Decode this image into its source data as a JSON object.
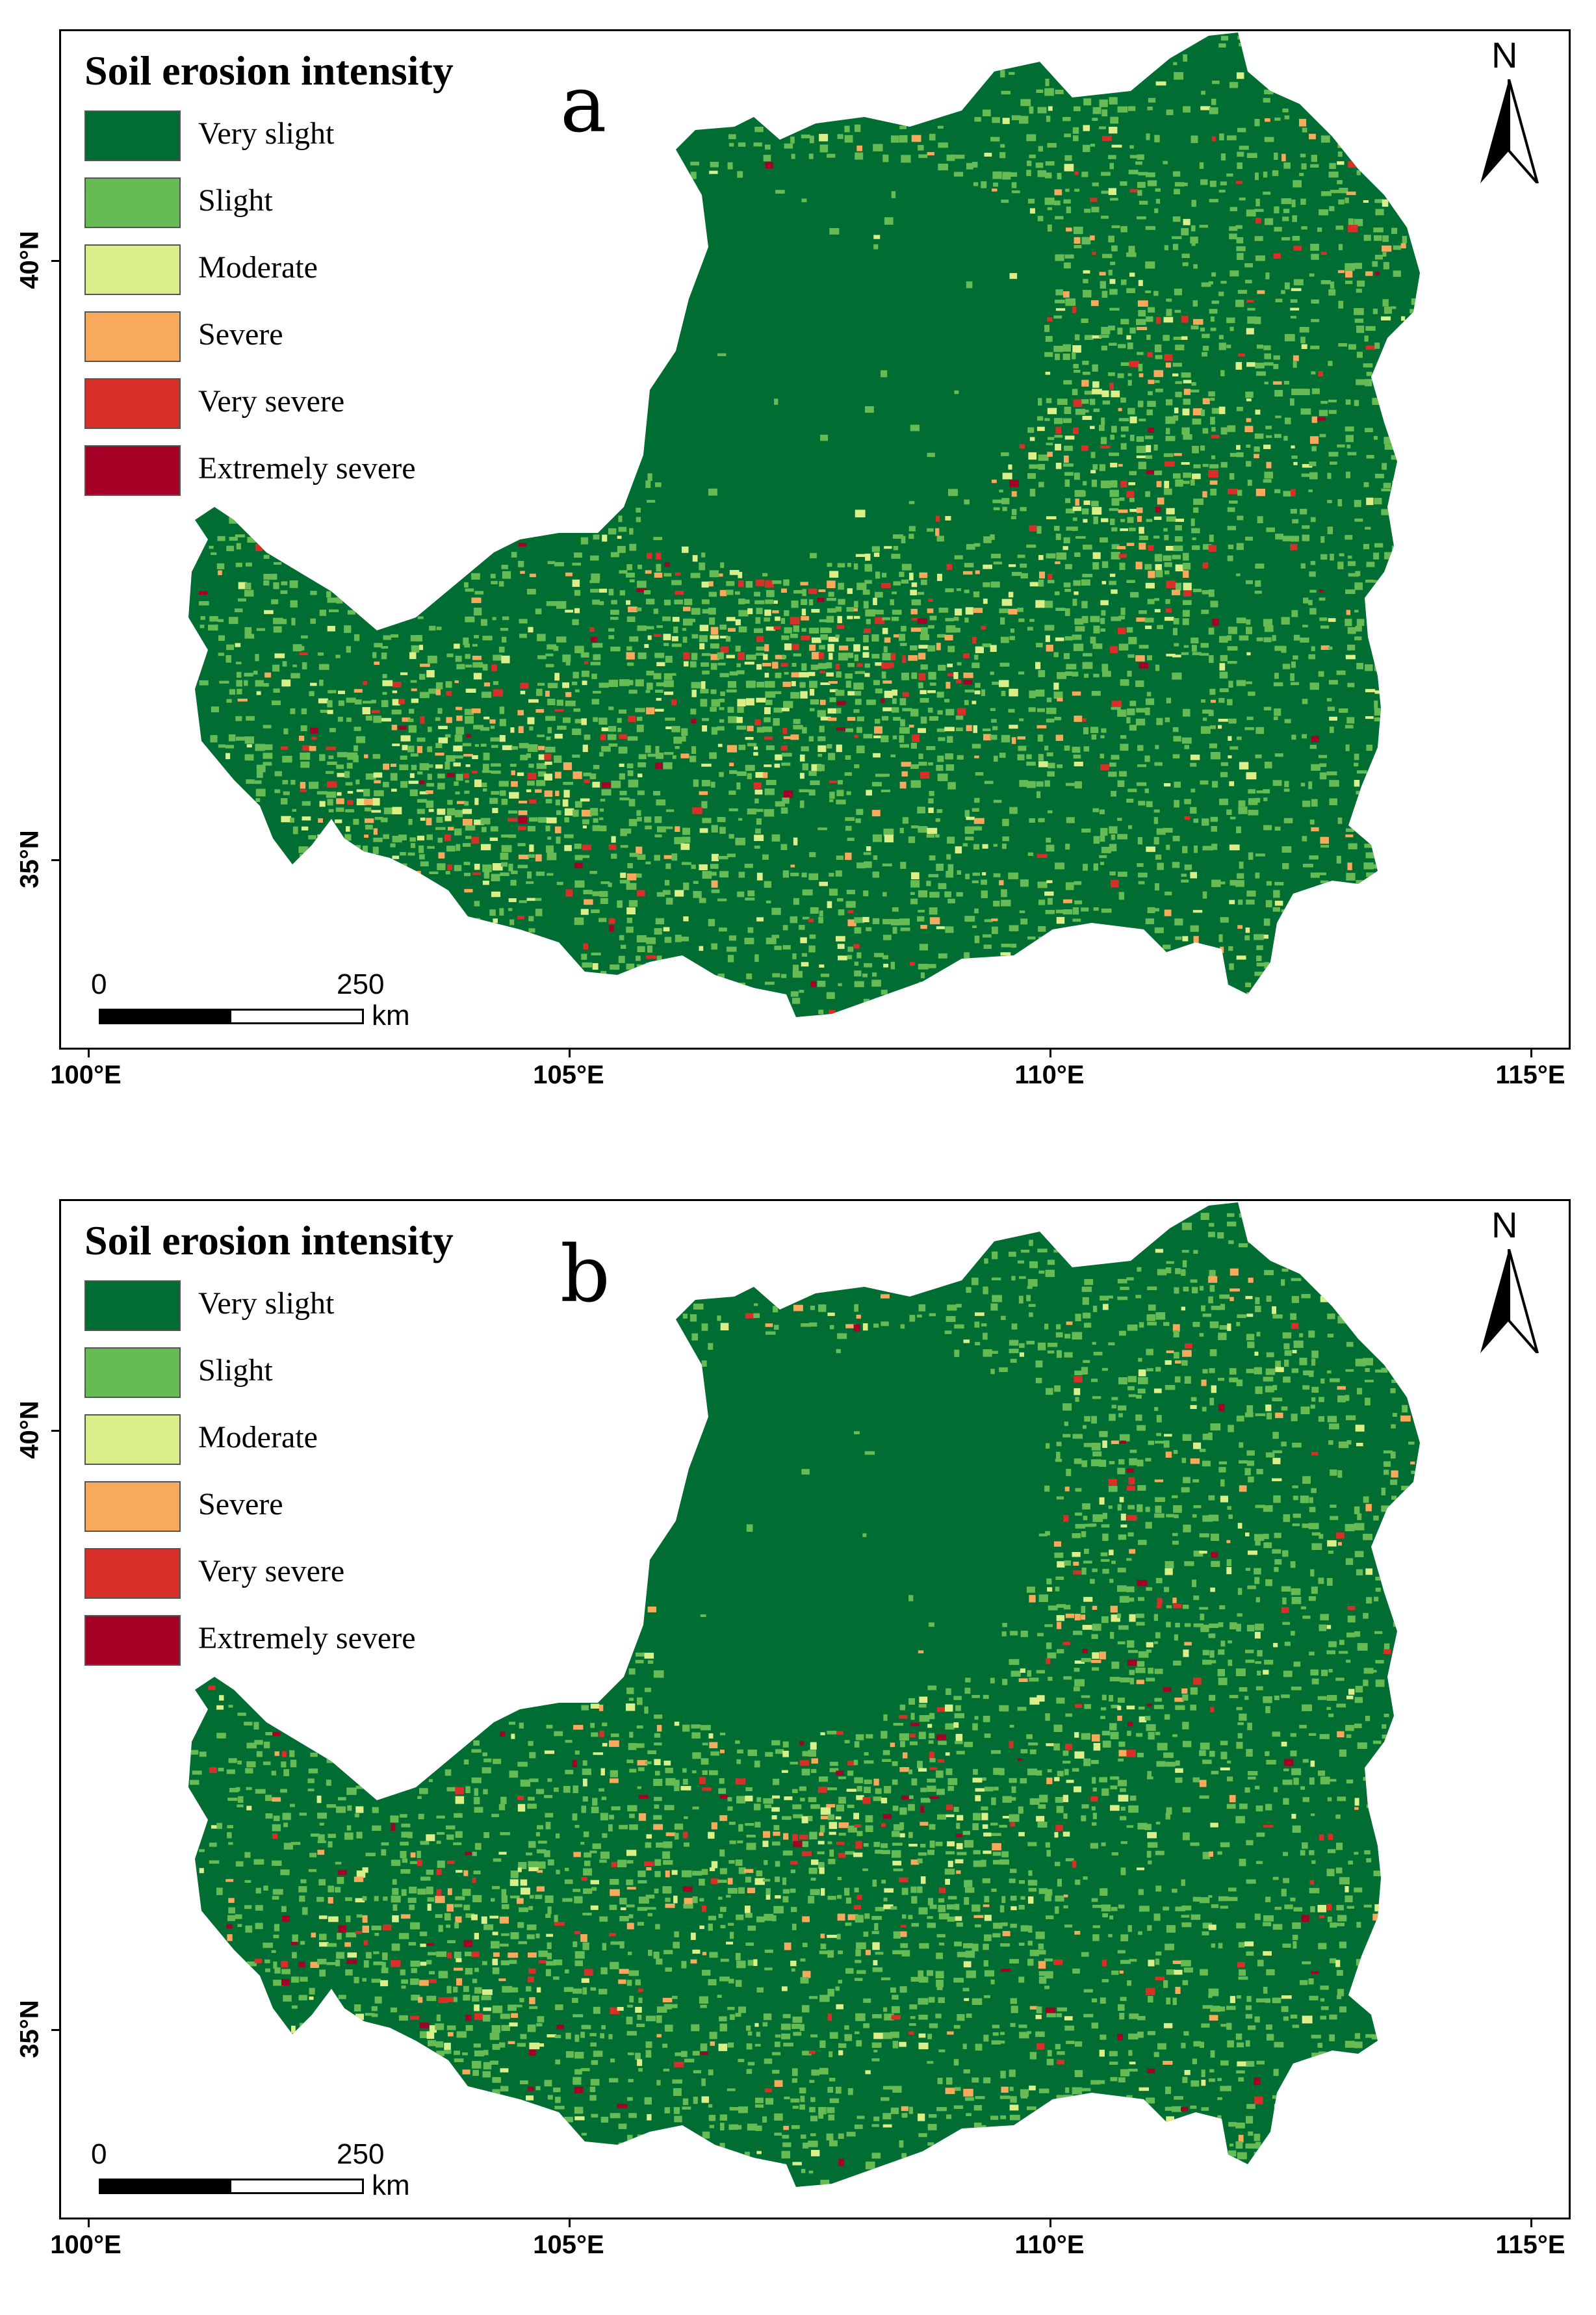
{
  "colors": {
    "very_slight": "#006d32",
    "slight": "#66bb55",
    "moderate": "#daee8a",
    "severe": "#f9a95c",
    "very_severe": "#d83028",
    "extremely_severe": "#a50026"
  },
  "legend": {
    "title": "Soil erosion intensity",
    "items": [
      {
        "label": "Very slight",
        "color_key": "very_slight"
      },
      {
        "label": "Slight",
        "color_key": "slight"
      },
      {
        "label": "Moderate",
        "color_key": "moderate"
      },
      {
        "label": "Severe",
        "color_key": "severe"
      },
      {
        "label": "Very severe",
        "color_key": "very_severe"
      },
      {
        "label": "Extremely severe",
        "color_key": "extremely_severe"
      }
    ]
  },
  "axes": {
    "x_ticks": [
      "100°E",
      "105°E",
      "110°E",
      "115°E"
    ],
    "y_ticks": [
      "40°N",
      "35°N"
    ]
  },
  "north_label": "N",
  "scale_bar": {
    "start": "0",
    "end": "250",
    "unit": "km"
  },
  "panels": [
    {
      "letter": "a",
      "pattern": {
        "erosion_level": 1.0
      }
    },
    {
      "letter": "b",
      "pattern": {
        "erosion_level": 0.55
      }
    }
  ]
}
